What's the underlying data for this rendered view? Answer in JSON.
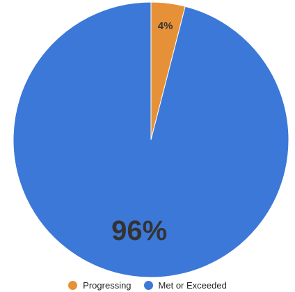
{
  "chart_data": {
    "type": "pie",
    "title": "",
    "start_angle": "12 o'clock",
    "direction": "clockwise",
    "slices": [
      {
        "label": "Progressing",
        "value": 4,
        "display": "4%",
        "color": "#e69138"
      },
      {
        "label": "Met or Exceeded",
        "value": 96,
        "display": "96%",
        "color": "#3c78d8"
      }
    ],
    "legend_position": "bottom"
  }
}
